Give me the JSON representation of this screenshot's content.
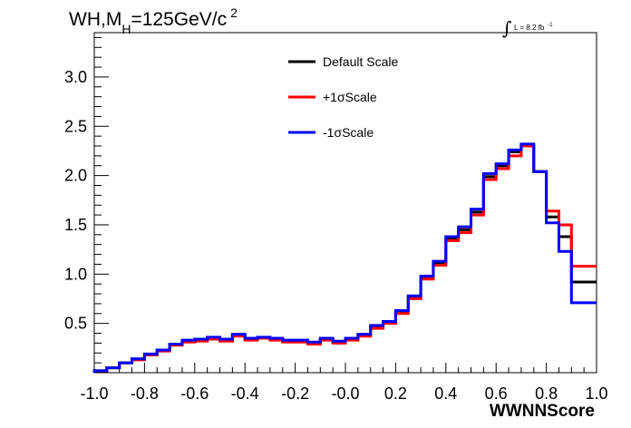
{
  "chart_data": {
    "type": "line",
    "step": true,
    "title": {
      "main": "WH,M",
      "subscript": "H",
      "rest": "=125GeV/c",
      "superscript": "2"
    },
    "luminosity": {
      "integral_sign": "∫",
      "text": "L = 8.2 fb",
      "superscript": "-1"
    },
    "xlabel": "WWNNScore",
    "ylabel": "",
    "xlim": [
      -1.0,
      1.0
    ],
    "ylim": [
      0.0,
      3.45
    ],
    "x_ticks": [
      {
        "value": -1.0,
        "label": "-1.0"
      },
      {
        "value": -0.8,
        "label": "-0.8"
      },
      {
        "value": -0.6,
        "label": "-0.6"
      },
      {
        "value": -0.4,
        "label": "-0.4"
      },
      {
        "value": -0.2,
        "label": "-0.2"
      },
      {
        "value": 0.0,
        "label": "-0.0"
      },
      {
        "value": 0.2,
        "label": "0.2"
      },
      {
        "value": 0.4,
        "label": "0.4"
      },
      {
        "value": 0.6,
        "label": "0.6"
      },
      {
        "value": 0.8,
        "label": "0.8"
      },
      {
        "value": 1.0,
        "label": "1.0"
      }
    ],
    "y_ticks": [
      {
        "value": 0.5,
        "label": "0.5"
      },
      {
        "value": 1.0,
        "label": "1.0"
      },
      {
        "value": 1.5,
        "label": "1.5"
      },
      {
        "value": 2.0,
        "label": "2.0"
      },
      {
        "value": 2.5,
        "label": "2.5"
      },
      {
        "value": 3.0,
        "label": "3.0"
      }
    ],
    "bin_edges": [
      -1.0,
      -0.95,
      -0.9,
      -0.85,
      -0.8,
      -0.75,
      -0.7,
      -0.65,
      -0.6,
      -0.55,
      -0.5,
      -0.45,
      -0.4,
      -0.35,
      -0.3,
      -0.25,
      -0.2,
      -0.15,
      -0.1,
      -0.05,
      0.0,
      0.05,
      0.1,
      0.15,
      0.2,
      0.25,
      0.3,
      0.35,
      0.4,
      0.45,
      0.5,
      0.55,
      0.6,
      0.65,
      0.7,
      0.75,
      0.8,
      0.85,
      0.9,
      0.95,
      1.0
    ],
    "series": [
      {
        "name": "Default Scale",
        "color": "#000000",
        "values": [
          0.02,
          0.05,
          0.1,
          0.14,
          0.18,
          0.23,
          0.28,
          0.32,
          0.33,
          0.35,
          0.33,
          0.38,
          0.34,
          0.35,
          0.34,
          0.32,
          0.32,
          0.3,
          0.34,
          0.31,
          0.34,
          0.38,
          0.46,
          0.51,
          0.61,
          0.76,
          0.96,
          1.11,
          1.36,
          1.45,
          1.63,
          1.99,
          2.1,
          2.24,
          2.3,
          2.04,
          1.58,
          1.38,
          0.92,
          0.92
        ]
      },
      {
        "name": "+1σScale",
        "color": "#ff0000",
        "values": [
          0.02,
          0.05,
          0.1,
          0.13,
          0.18,
          0.22,
          0.28,
          0.31,
          0.32,
          0.34,
          0.32,
          0.37,
          0.33,
          0.35,
          0.33,
          0.31,
          0.31,
          0.29,
          0.33,
          0.3,
          0.33,
          0.37,
          0.45,
          0.5,
          0.6,
          0.75,
          0.95,
          1.09,
          1.34,
          1.42,
          1.6,
          1.96,
          2.07,
          2.2,
          2.3,
          2.04,
          1.64,
          1.5,
          1.08,
          1.08
        ]
      },
      {
        "name": "-1σScale",
        "color": "#0000ff",
        "values": [
          0.02,
          0.05,
          0.1,
          0.14,
          0.19,
          0.23,
          0.29,
          0.33,
          0.34,
          0.36,
          0.34,
          0.39,
          0.35,
          0.36,
          0.35,
          0.33,
          0.33,
          0.31,
          0.35,
          0.32,
          0.35,
          0.39,
          0.48,
          0.52,
          0.63,
          0.78,
          0.98,
          1.13,
          1.38,
          1.48,
          1.66,
          2.02,
          2.12,
          2.26,
          2.32,
          2.04,
          1.52,
          1.23,
          0.71,
          0.71
        ]
      }
    ],
    "legend_placement": "top-center",
    "grid": false
  }
}
